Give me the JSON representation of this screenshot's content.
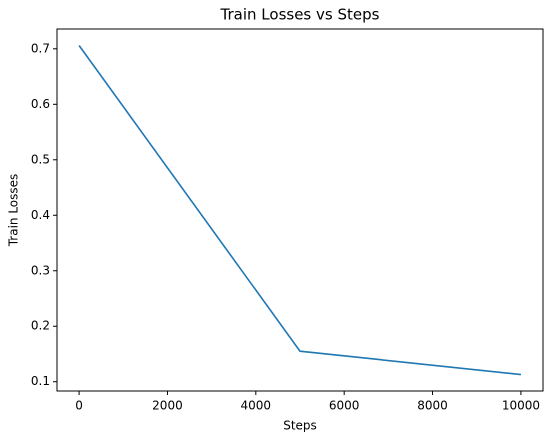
{
  "chart_data": {
    "type": "line",
    "title": "Train Losses vs Steps",
    "x_label": "Steps",
    "y_label": "Train Losses",
    "x": [
      0,
      5000,
      10000
    ],
    "series": [
      {
        "values": [
          0.706,
          0.155,
          0.113
        ],
        "color": "#1f77b4"
      }
    ],
    "xlim": [
      -500,
      10500
    ],
    "xticks": [
      0,
      2000,
      4000,
      6000,
      8000,
      10000
    ],
    "ylim": [
      0.0833,
      0.7357
    ],
    "yticks": [
      0.1,
      0.2,
      0.3,
      0.4,
      0.5,
      0.6,
      0.7
    ],
    "grid": false
  }
}
